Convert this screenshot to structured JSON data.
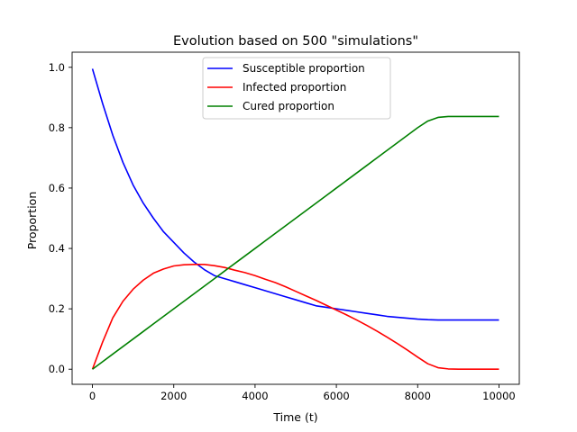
{
  "chart_data": {
    "type": "line",
    "title": "Evolution based on 500 \"simulations\"",
    "xlabel": "Time (t)",
    "ylabel": "Proportion",
    "xlim": [
      -500,
      10500
    ],
    "ylim": [
      -0.05,
      1.05
    ],
    "xticks": [
      0,
      2000,
      4000,
      6000,
      8000,
      10000
    ],
    "xtick_labels": [
      "0",
      "2000",
      "4000",
      "6000",
      "8000",
      "10000"
    ],
    "yticks": [
      0.0,
      0.2,
      0.4,
      0.6,
      0.8,
      1.0
    ],
    "ytick_labels": [
      "0.0",
      "0.2",
      "0.4",
      "0.6",
      "0.8",
      "1.0"
    ],
    "grid": false,
    "legend_position": "top-center",
    "x": [
      0,
      250,
      500,
      750,
      1000,
      1250,
      1500,
      1750,
      2000,
      2250,
      2500,
      2750,
      3000,
      3250,
      3500,
      3750,
      4000,
      4250,
      4500,
      4750,
      5000,
      5250,
      5500,
      5750,
      6000,
      6250,
      6500,
      6750,
      7000,
      7250,
      7500,
      7750,
      8000,
      8250,
      8500,
      8750,
      9000,
      9250,
      9500,
      9750,
      10000
    ],
    "series": [
      {
        "name": "Susceptible proportion",
        "color": "#0000ff",
        "values": [
          0.995,
          0.88,
          0.775,
          0.685,
          0.61,
          0.55,
          0.5,
          0.455,
          0.42,
          0.385,
          0.355,
          0.33,
          0.31,
          0.3,
          0.29,
          0.28,
          0.27,
          0.26,
          0.25,
          0.24,
          0.23,
          0.22,
          0.21,
          0.205,
          0.2,
          0.195,
          0.19,
          0.185,
          0.18,
          0.175,
          0.172,
          0.169,
          0.166,
          0.164,
          0.163,
          0.163,
          0.163,
          0.163,
          0.163,
          0.163,
          0.163
        ]
      },
      {
        "name": "Infected proportion",
        "color": "#ff0000",
        "values": [
          0.0,
          0.09,
          0.17,
          0.225,
          0.265,
          0.295,
          0.318,
          0.332,
          0.342,
          0.346,
          0.347,
          0.347,
          0.343,
          0.337,
          0.328,
          0.32,
          0.31,
          0.298,
          0.287,
          0.273,
          0.258,
          0.243,
          0.228,
          0.212,
          0.196,
          0.18,
          0.163,
          0.145,
          0.126,
          0.106,
          0.085,
          0.063,
          0.04,
          0.018,
          0.005,
          0.001,
          0.0,
          0.0,
          0.0,
          0.0,
          0.0
        ]
      },
      {
        "name": "Cured proportion",
        "color": "#008000",
        "values": [
          0.0,
          0.025,
          0.05,
          0.075,
          0.1,
          0.125,
          0.15,
          0.175,
          0.2,
          0.225,
          0.25,
          0.275,
          0.3,
          0.325,
          0.35,
          0.375,
          0.4,
          0.425,
          0.45,
          0.475,
          0.5,
          0.525,
          0.55,
          0.575,
          0.6,
          0.625,
          0.65,
          0.675,
          0.7,
          0.725,
          0.75,
          0.775,
          0.8,
          0.822,
          0.834,
          0.837,
          0.837,
          0.837,
          0.837,
          0.837,
          0.837
        ]
      }
    ]
  }
}
